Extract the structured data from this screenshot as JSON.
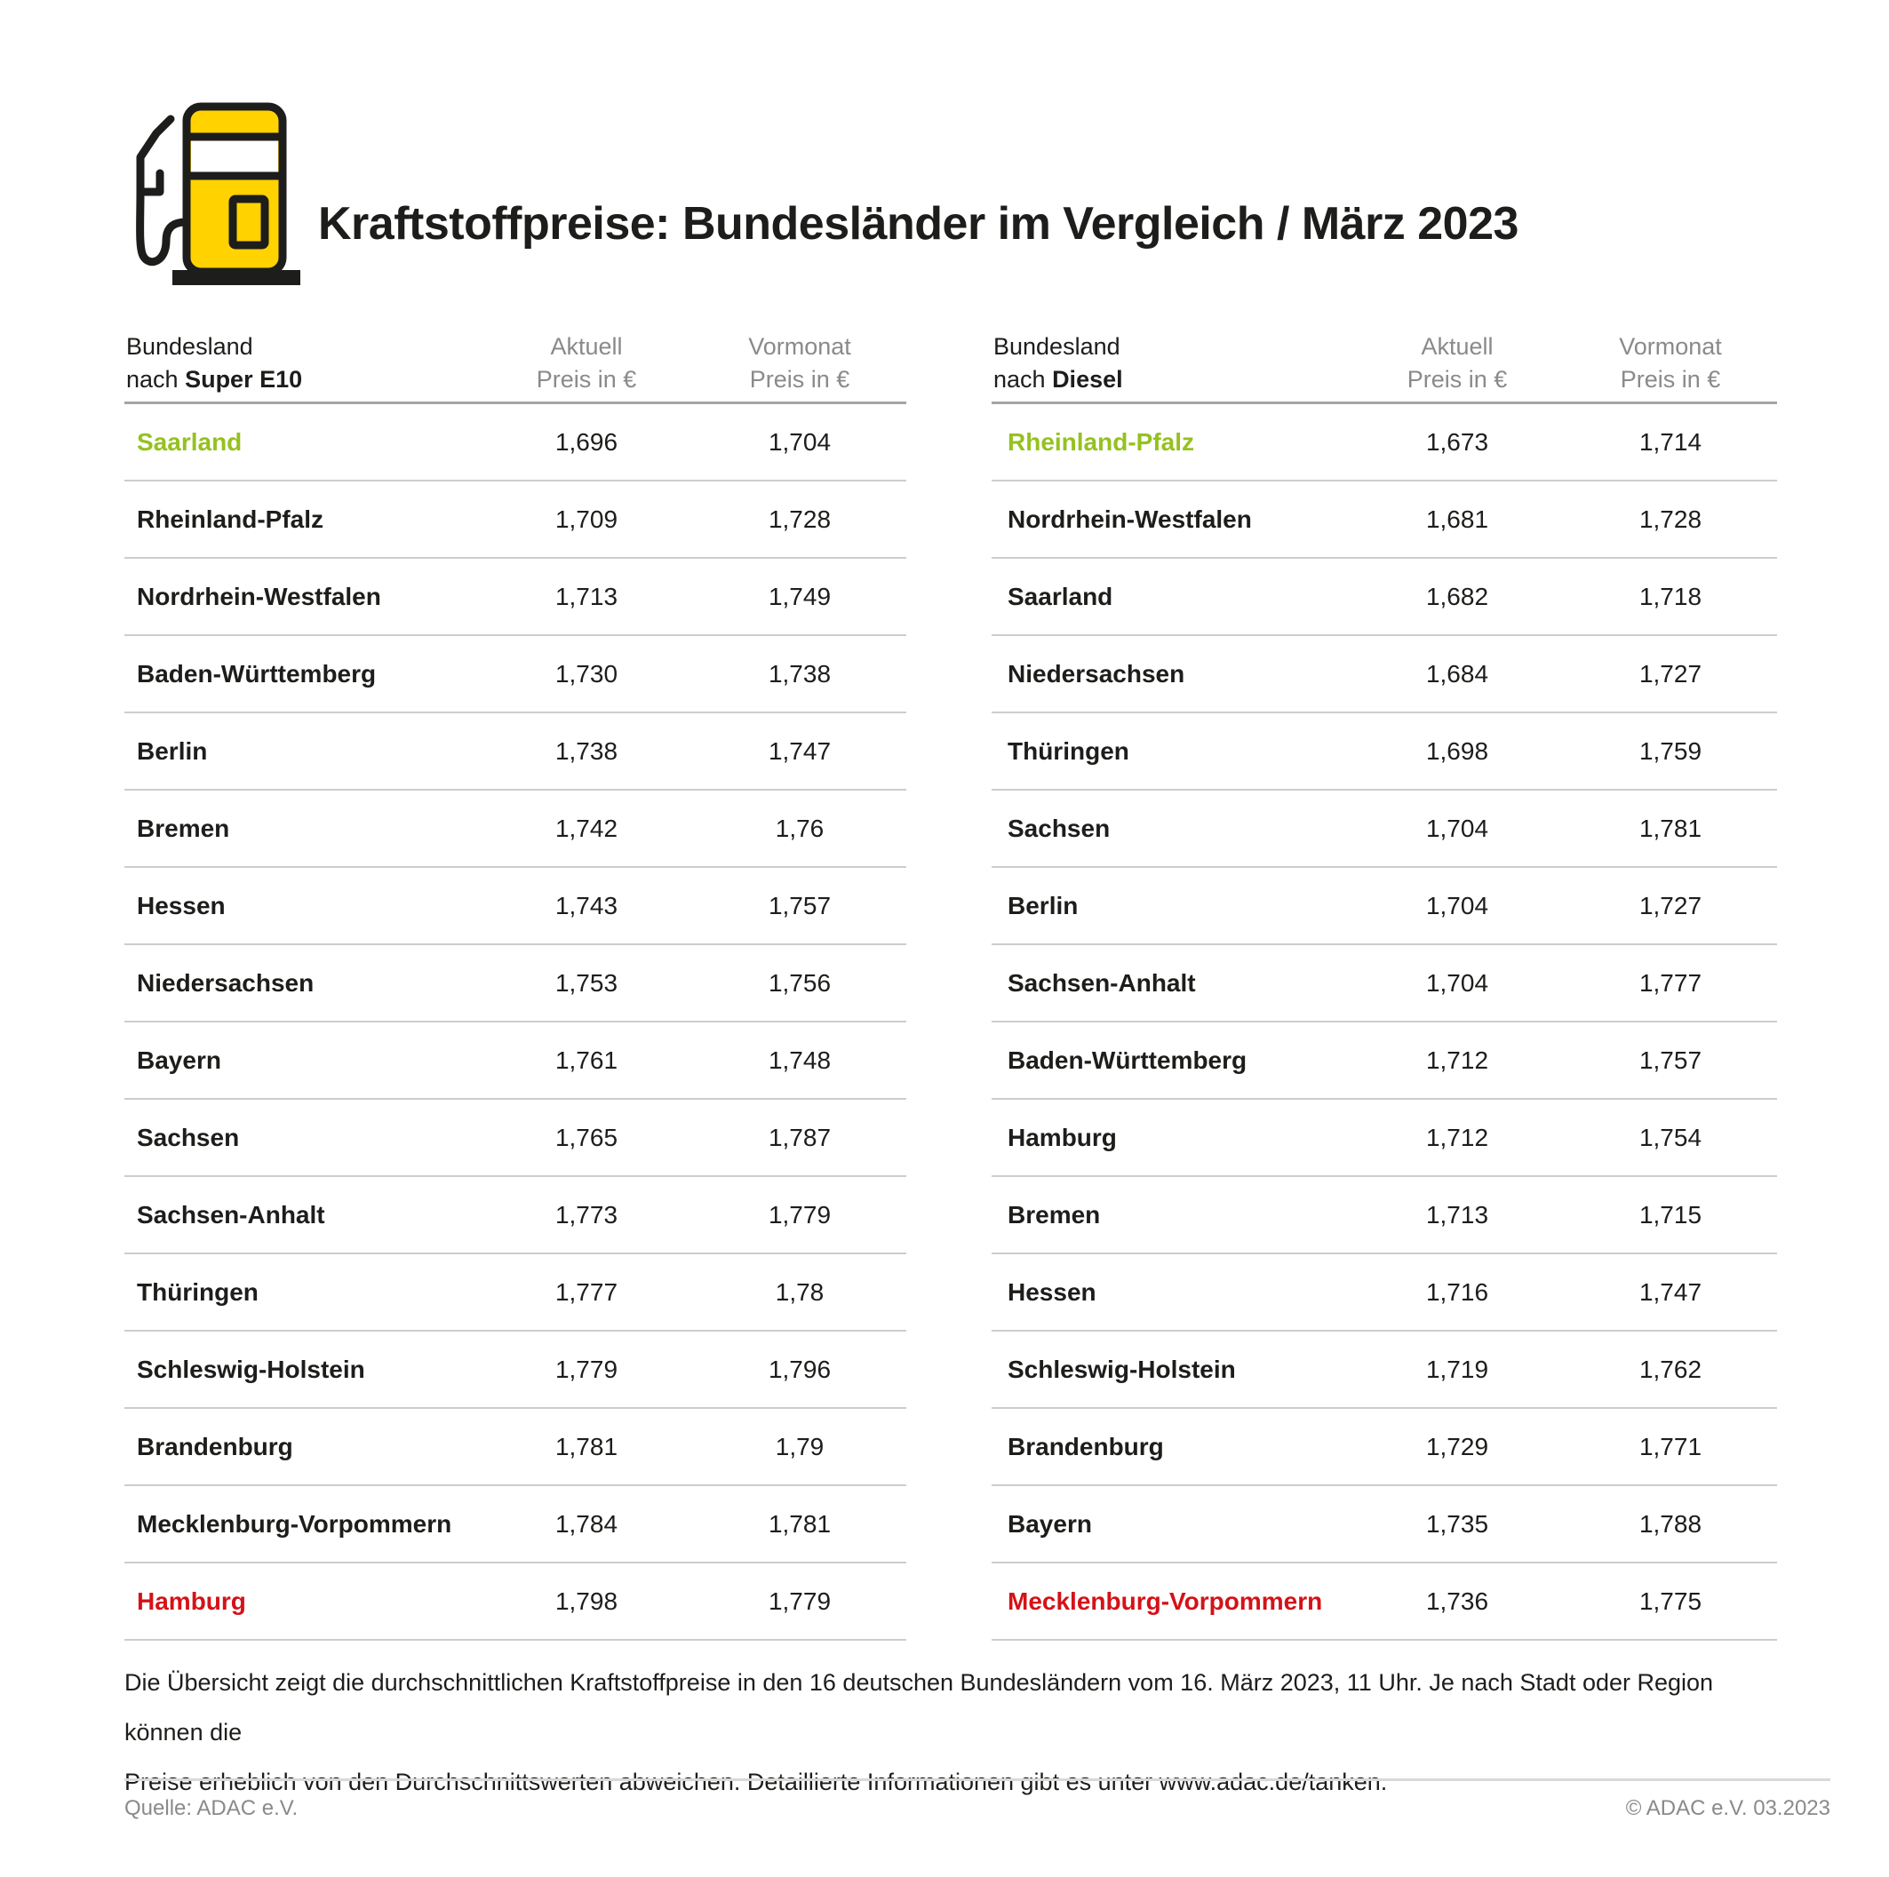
{
  "header": {
    "title": "Kraftstoffpreise: Bundesländer im Vergleich / März 2023"
  },
  "chart_data": [
    {
      "type": "table",
      "name": "super_e10",
      "header": {
        "col_state_line1": "Bundesland",
        "col_state_line2_prefix": "nach ",
        "col_state_line2_bold": "Super E10",
        "col_aktuell_line1": "Aktuell",
        "col_aktuell_line2": "Preis in €",
        "col_vormonat_line1": "Vormonat",
        "col_vormonat_line2": "Preis in €"
      },
      "rows": [
        {
          "state": "Saarland",
          "aktuell": "1,696",
          "vormonat": "1,704",
          "highlight": "green"
        },
        {
          "state": "Rheinland-Pfalz",
          "aktuell": "1,709",
          "vormonat": "1,728",
          "highlight": null
        },
        {
          "state": "Nordrhein-Westfalen",
          "aktuell": "1,713",
          "vormonat": "1,749",
          "highlight": null
        },
        {
          "state": "Baden-Württemberg",
          "aktuell": "1,730",
          "vormonat": "1,738",
          "highlight": null
        },
        {
          "state": "Berlin",
          "aktuell": "1,738",
          "vormonat": "1,747",
          "highlight": null
        },
        {
          "state": "Bremen",
          "aktuell": "1,742",
          "vormonat": "1,76",
          "highlight": null
        },
        {
          "state": "Hessen",
          "aktuell": "1,743",
          "vormonat": "1,757",
          "highlight": null
        },
        {
          "state": "Niedersachsen",
          "aktuell": "1,753",
          "vormonat": "1,756",
          "highlight": null
        },
        {
          "state": "Bayern",
          "aktuell": "1,761",
          "vormonat": "1,748",
          "highlight": null
        },
        {
          "state": "Sachsen",
          "aktuell": "1,765",
          "vormonat": "1,787",
          "highlight": null
        },
        {
          "state": "Sachsen-Anhalt",
          "aktuell": "1,773",
          "vormonat": "1,779",
          "highlight": null
        },
        {
          "state": "Thüringen",
          "aktuell": "1,777",
          "vormonat": "1,78",
          "highlight": null
        },
        {
          "state": "Schleswig-Holstein",
          "aktuell": "1,779",
          "vormonat": "1,796",
          "highlight": null
        },
        {
          "state": "Brandenburg",
          "aktuell": "1,781",
          "vormonat": "1,79",
          "highlight": null
        },
        {
          "state": "Mecklenburg-Vorpommern",
          "aktuell": "1,784",
          "vormonat": "1,781",
          "highlight": null
        },
        {
          "state": "Hamburg",
          "aktuell": "1,798",
          "vormonat": "1,779",
          "highlight": "red"
        }
      ]
    },
    {
      "type": "table",
      "name": "diesel",
      "header": {
        "col_state_line1": "Bundesland",
        "col_state_line2_prefix": "nach ",
        "col_state_line2_bold": "Diesel",
        "col_aktuell_line1": "Aktuell",
        "col_aktuell_line2": "Preis in €",
        "col_vormonat_line1": "Vormonat",
        "col_vormonat_line2": "Preis in €"
      },
      "rows": [
        {
          "state": "Rheinland-Pfalz",
          "aktuell": "1,673",
          "vormonat": "1,714",
          "highlight": "green"
        },
        {
          "state": "Nordrhein-Westfalen",
          "aktuell": "1,681",
          "vormonat": "1,728",
          "highlight": null
        },
        {
          "state": "Saarland",
          "aktuell": "1,682",
          "vormonat": "1,718",
          "highlight": null
        },
        {
          "state": "Niedersachsen",
          "aktuell": "1,684",
          "vormonat": "1,727",
          "highlight": null
        },
        {
          "state": "Thüringen",
          "aktuell": "1,698",
          "vormonat": "1,759",
          "highlight": null
        },
        {
          "state": "Sachsen",
          "aktuell": "1,704",
          "vormonat": "1,781",
          "highlight": null
        },
        {
          "state": "Berlin",
          "aktuell": "1,704",
          "vormonat": "1,727",
          "highlight": null
        },
        {
          "state": "Sachsen-Anhalt",
          "aktuell": "1,704",
          "vormonat": "1,777",
          "highlight": null
        },
        {
          "state": "Baden-Württemberg",
          "aktuell": "1,712",
          "vormonat": "1,757",
          "highlight": null
        },
        {
          "state": "Hamburg",
          "aktuell": "1,712",
          "vormonat": "1,754",
          "highlight": null
        },
        {
          "state": "Bremen",
          "aktuell": "1,713",
          "vormonat": "1,715",
          "highlight": null
        },
        {
          "state": "Hessen",
          "aktuell": "1,716",
          "vormonat": "1,747",
          "highlight": null
        },
        {
          "state": "Schleswig-Holstein",
          "aktuell": "1,719",
          "vormonat": "1,762",
          "highlight": null
        },
        {
          "state": "Brandenburg",
          "aktuell": "1,729",
          "vormonat": "1,771",
          "highlight": null
        },
        {
          "state": "Bayern",
          "aktuell": "1,735",
          "vormonat": "1,788",
          "highlight": null
        },
        {
          "state": "Mecklenburg-Vorpommern",
          "aktuell": "1,736",
          "vormonat": "1,775",
          "highlight": "red"
        }
      ]
    }
  ],
  "footnote": {
    "line1": "Die Übersicht zeigt die durchschnittlichen Kraftstoffpreise in den 16 deutschen Bundesländern vom 16. März 2023, 11 Uhr. Je nach Stadt oder Region können die",
    "line2": "Preise erheblich von den Durchschnittswerten abweichen. Detaillierte Informationen gibt es unter www.adac.de/tanken."
  },
  "footer": {
    "source": "Quelle: ADAC e.V.",
    "copyright": "© ADAC e.V. 03.2023"
  },
  "colors": {
    "ink": "#1d1d1b",
    "green": "#95c11f",
    "red": "#d41217",
    "yellow": "#ffd200",
    "muted": "#8a8a8a",
    "rule": "#cdcdcd",
    "header-rule": "#a5a5a5",
    "footer-rule": "#d9d9d9"
  }
}
